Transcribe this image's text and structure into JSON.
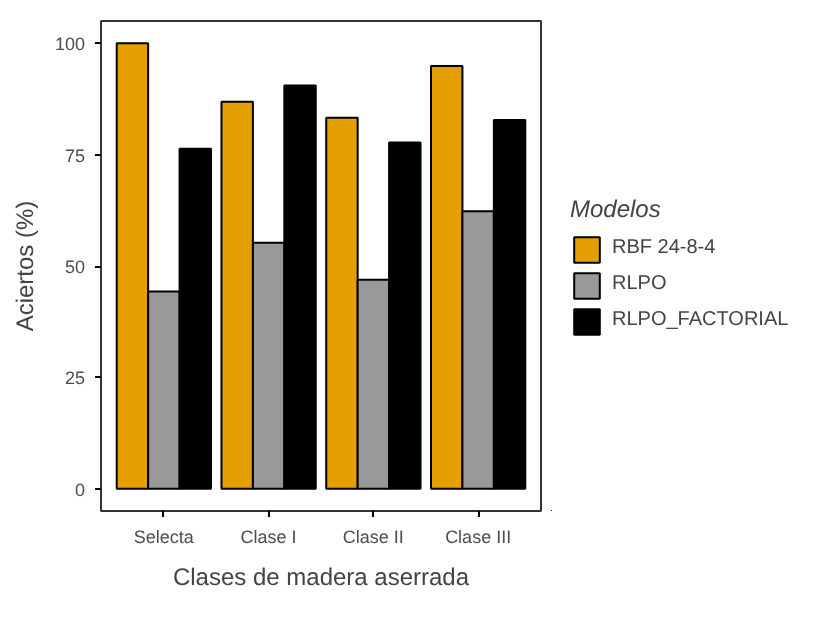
{
  "chart_data": {
    "type": "bar",
    "xlabel": "Clases de madera aserrada",
    "ylabel": "Aciertos (%)",
    "legend_title": "Modelos",
    "categories": [
      "Selecta",
      "Clase I",
      "Clase II",
      "Clase III"
    ],
    "series": [
      {
        "name": "RBF 24-8-4",
        "color": "#e69f00",
        "values": [
          100,
          86.9,
          83.3,
          94.9
        ]
      },
      {
        "name": "RLPO",
        "color": "#999999",
        "values": [
          44.3,
          55.2,
          46.9,
          62.3
        ]
      },
      {
        "name": "RLPO_FACTORIAL",
        "color": "#000000",
        "values": [
          76.3,
          90.5,
          77.7,
          82.8
        ]
      }
    ],
    "ylim": [
      -5,
      105
    ],
    "yticks": [
      0,
      25,
      50,
      75,
      100
    ],
    "grid": false,
    "legend": "right"
  }
}
